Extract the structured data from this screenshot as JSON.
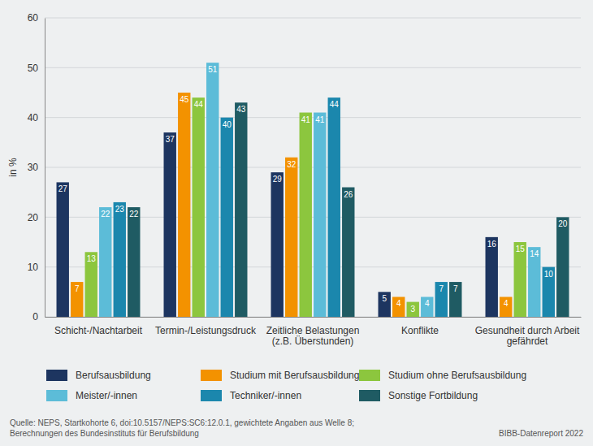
{
  "chart_data": {
    "type": "bar",
    "y_label": "in %",
    "categories": [
      "Schicht-/Nachtarbeit",
      "Termin-/Leistungsdruck",
      "Zeitliche Belastungen (z.B. Überstunden)",
      "Konflikte",
      "Gesundheit durch Arbeit gefährdet"
    ],
    "series": [
      {
        "name": "Berufsausbildung",
        "color": "#1d3560",
        "values": [
          27,
          37,
          29,
          5,
          16
        ]
      },
      {
        "name": "Studium mit Berufsausbildung",
        "color": "#f39200",
        "values": [
          7,
          45,
          32,
          4,
          4
        ]
      },
      {
        "name": "Studium ohne Berufsausbildung",
        "color": "#8cc63e",
        "values": [
          13,
          44,
          41,
          3,
          15
        ]
      },
      {
        "name": "Meister/-innen",
        "color": "#5cbcd8",
        "values": [
          22,
          51,
          41,
          4,
          14
        ]
      },
      {
        "name": "Techniker/-innen",
        "color": "#1b87ad",
        "values": [
          23,
          40,
          44,
          7,
          10
        ]
      },
      {
        "name": "Sonstige Fortbildung",
        "color": "#1f5b63",
        "values": [
          22,
          43,
          26,
          7,
          20
        ]
      }
    ],
    "ylim": [
      0,
      60
    ],
    "yticks": [
      0,
      10,
      20,
      30,
      40,
      50,
      60
    ],
    "grid": true,
    "data_labels": true,
    "legend": "bottom",
    "source": [
      "Quelle: NEPS, Startkohorte 6, doi:10.5157/NEPS:SC6:12.0.1, gewichtete Angaben aus Welle 8;",
      "Berechnungen des Bundesinstituts für Berufsbildung"
    ],
    "credit": "BIBB-Datenreport 2022"
  }
}
